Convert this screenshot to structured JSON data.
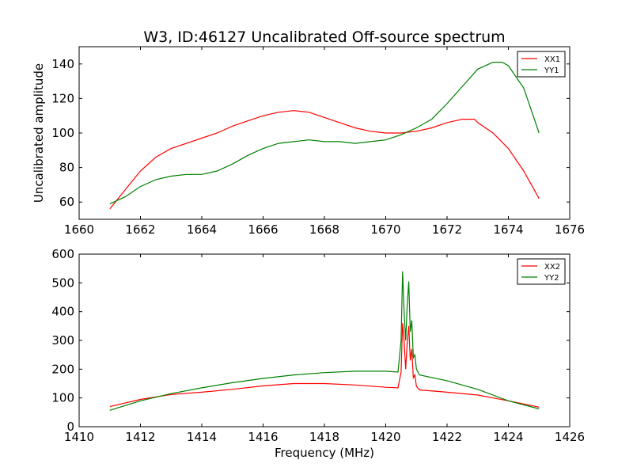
{
  "chart_data": [
    {
      "type": "line",
      "title": "W3, ID:46127 Uncalibrated Off-source spectrum",
      "xlabel": "",
      "ylabel": "Uncalibrated amplitude",
      "xlim": [
        1660,
        1676
      ],
      "ylim": [
        50,
        150
      ],
      "xticks": [
        1660,
        1662,
        1664,
        1666,
        1668,
        1670,
        1672,
        1674,
        1676
      ],
      "yticks": [
        60,
        80,
        100,
        120,
        140
      ],
      "grid": false,
      "legend_position": "top-right",
      "series": [
        {
          "name": "XX1",
          "color": "#ff0000",
          "x": [
            1661.0,
            1661.5,
            1662.0,
            1662.5,
            1663.0,
            1663.5,
            1664.0,
            1664.5,
            1665.0,
            1665.5,
            1666.0,
            1666.5,
            1667.0,
            1667.5,
            1668.0,
            1668.5,
            1669.0,
            1669.5,
            1670.0,
            1670.5,
            1671.0,
            1671.5,
            1672.0,
            1672.5,
            1672.9,
            1673.0,
            1673.5,
            1674.0,
            1674.5,
            1675.0
          ],
          "y": [
            56,
            67,
            78,
            86,
            91,
            94,
            97,
            100,
            104,
            107,
            110,
            112,
            113,
            112,
            109,
            106,
            103,
            101,
            100,
            100,
            101,
            103,
            106,
            108,
            108,
            106,
            100,
            91,
            78,
            62
          ]
        },
        {
          "name": "YY1",
          "color": "#008000",
          "x": [
            1661.0,
            1661.5,
            1662.0,
            1662.5,
            1663.0,
            1663.5,
            1664.0,
            1664.5,
            1665.0,
            1665.5,
            1666.0,
            1666.5,
            1667.0,
            1667.5,
            1668.0,
            1668.5,
            1669.0,
            1669.5,
            1670.0,
            1670.5,
            1671.0,
            1671.5,
            1672.0,
            1672.5,
            1673.0,
            1673.5,
            1673.8,
            1674.0,
            1674.5,
            1675.0
          ],
          "y": [
            59,
            63,
            69,
            73,
            75,
            76,
            76,
            78,
            82,
            87,
            91,
            94,
            95,
            96,
            95,
            95,
            94,
            95,
            96,
            99,
            103,
            108,
            117,
            127,
            137,
            141,
            141,
            139,
            126,
            100
          ]
        }
      ]
    },
    {
      "type": "line",
      "title": "",
      "xlabel": "Frequency (MHz)",
      "ylabel": "",
      "xlim": [
        1410,
        1426
      ],
      "ylim": [
        0,
        600
      ],
      "xticks": [
        1410,
        1412,
        1414,
        1416,
        1418,
        1420,
        1422,
        1424,
        1426
      ],
      "yticks": [
        0,
        100,
        200,
        300,
        400,
        500,
        600
      ],
      "grid": false,
      "legend_position": "top-right",
      "series": [
        {
          "name": "XX2",
          "color": "#ff0000",
          "x": [
            1411.0,
            1412.0,
            1413.0,
            1414.0,
            1415.0,
            1416.0,
            1417.0,
            1418.0,
            1419.0,
            1420.0,
            1420.4,
            1420.5,
            1420.55,
            1420.6,
            1420.65,
            1420.7,
            1420.75,
            1420.8,
            1420.85,
            1420.9,
            1420.95,
            1421.0,
            1421.1,
            1422.0,
            1423.0,
            1424.0,
            1425.0
          ],
          "y": [
            70,
            95,
            112,
            120,
            130,
            142,
            150,
            150,
            145,
            137,
            135,
            190,
            360,
            300,
            200,
            290,
            350,
            230,
            270,
            170,
            180,
            140,
            128,
            120,
            110,
            90,
            68
          ]
        },
        {
          "name": "YY2",
          "color": "#008000",
          "x": [
            1411.0,
            1412.0,
            1413.0,
            1414.0,
            1415.0,
            1416.0,
            1417.0,
            1418.0,
            1419.0,
            1420.0,
            1420.4,
            1420.5,
            1420.55,
            1420.6,
            1420.65,
            1420.7,
            1420.75,
            1420.8,
            1420.85,
            1420.9,
            1420.95,
            1421.0,
            1421.1,
            1422.0,
            1423.0,
            1424.0,
            1425.0
          ],
          "y": [
            57,
            90,
            115,
            135,
            153,
            168,
            180,
            188,
            193,
            193,
            190,
            300,
            540,
            400,
            300,
            420,
            505,
            330,
            370,
            240,
            250,
            200,
            180,
            160,
            130,
            90,
            62
          ]
        }
      ]
    }
  ]
}
